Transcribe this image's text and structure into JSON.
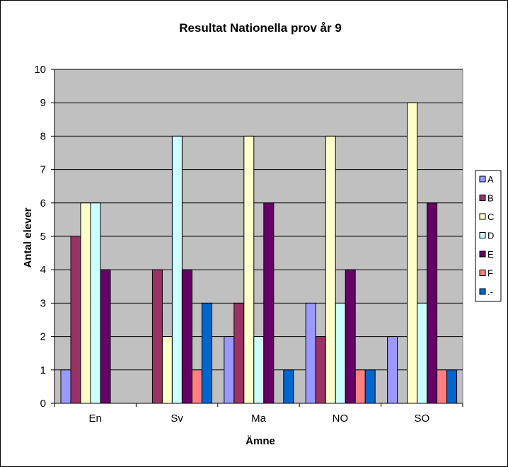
{
  "chart_data": {
    "type": "bar",
    "title": "Resultat Nationella prov år 9",
    "xlabel": "Ämne",
    "ylabel": "Antal elever",
    "categories": [
      "En",
      "Sv",
      "Ma",
      "NO",
      "SO"
    ],
    "ylim": [
      0,
      10
    ],
    "yticks": [
      "0",
      "1",
      "2",
      "3",
      "4",
      "5",
      "6",
      "7",
      "8",
      "9",
      "10"
    ],
    "grid": true,
    "legend_position": "right",
    "plot_background": "#c0c0c0",
    "series": [
      {
        "name": "A",
        "color": "#9999ff",
        "values": [
          1,
          0,
          2,
          3,
          2
        ]
      },
      {
        "name": "B",
        "color": "#993366",
        "values": [
          5,
          4,
          3,
          2,
          0
        ]
      },
      {
        "name": "C",
        "color": "#ffffcc",
        "values": [
          6,
          2,
          8,
          8,
          9
        ]
      },
      {
        "name": "D",
        "color": "#ccffff",
        "values": [
          6,
          8,
          2,
          3,
          3
        ]
      },
      {
        "name": "E",
        "color": "#660066",
        "values": [
          4,
          4,
          6,
          4,
          6
        ]
      },
      {
        "name": "F",
        "color": "#ff8080",
        "values": [
          0,
          1,
          0,
          1,
          1
        ]
      },
      {
        "name": ".-",
        "color": "#0066cc",
        "values": [
          0,
          3,
          1,
          1,
          1
        ]
      }
    ]
  }
}
